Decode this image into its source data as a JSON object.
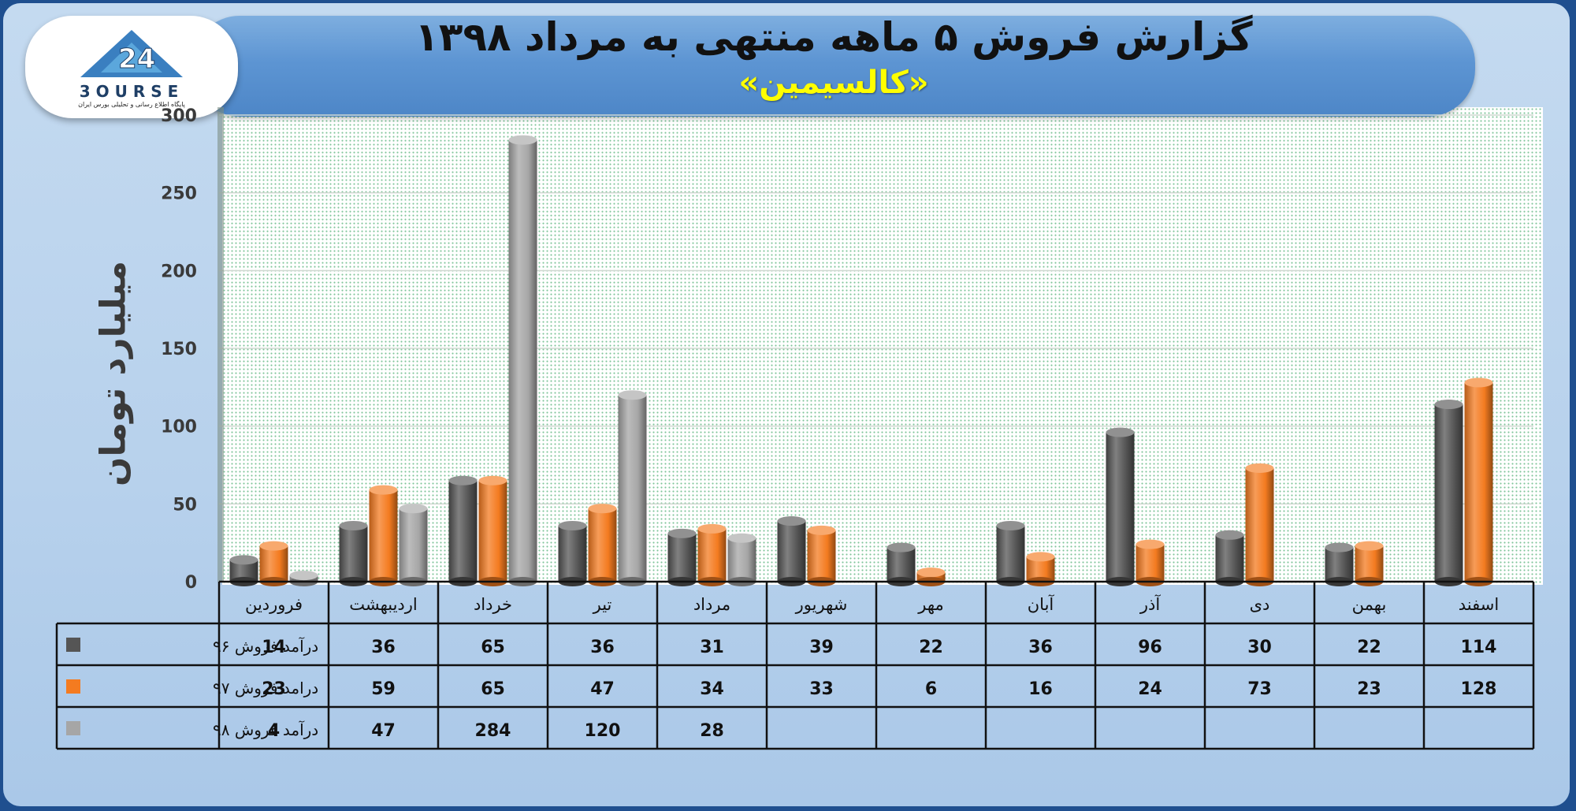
{
  "header": {
    "title": "گزارش فروش ۵ ماهه منتهی به مرداد ۱۳۹۸",
    "subtitle": "«کالسیمین»"
  },
  "logo": {
    "name": "3OURSE",
    "tagline": "پایگاه اطلاع رسانی و تحلیلی بورس ایران"
  },
  "chart_data": {
    "type": "bar",
    "title": "گزارش فروش ۵ ماهه منتهی به مرداد ۱۳۹۸",
    "ylabel": "میلیارد تومان",
    "ylim": [
      0,
      300
    ],
    "yticks": [
      0,
      50,
      100,
      150,
      200,
      250,
      300
    ],
    "grid": true,
    "categories": [
      "فروردین",
      "اردیبهشت",
      "خرداد",
      "تیر",
      "مرداد",
      "شهریور",
      "مهر",
      "آبان",
      "آذر",
      "دی",
      "بهمن",
      "اسفند"
    ],
    "series": [
      {
        "name": "درآمد فروش ۹۶",
        "color": "#555555",
        "values": [
          14,
          36,
          65,
          36,
          31,
          39,
          22,
          36,
          96,
          30,
          22,
          114
        ]
      },
      {
        "name": "درامد فروش ۹۷",
        "color": "#f47b20",
        "values": [
          23,
          59,
          65,
          47,
          34,
          33,
          6,
          16,
          24,
          73,
          23,
          128
        ]
      },
      {
        "name": "درآمد فروش ۹۸",
        "color": "#a6a6a6",
        "values": [
          4,
          47,
          284,
          120,
          28,
          null,
          null,
          null,
          null,
          null,
          null,
          null
        ]
      }
    ]
  }
}
